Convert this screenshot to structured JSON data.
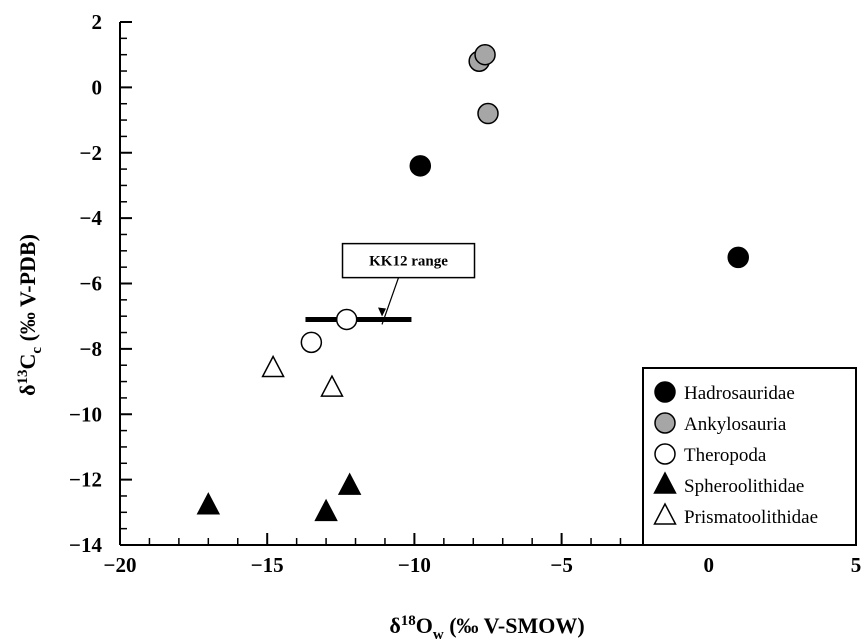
{
  "chart_data": {
    "type": "scatter",
    "xlim": [
      -20,
      5
    ],
    "ylim": [
      -14,
      2
    ],
    "x_ticks": [
      -20,
      -15,
      -10,
      -5,
      0,
      5
    ],
    "y_ticks": [
      -14,
      -12,
      -10,
      -8,
      -6,
      -4,
      -2,
      0,
      2
    ],
    "x_tick_labels": [
      "−20",
      "−15",
      "−10",
      "−5",
      "0",
      "5"
    ],
    "y_tick_labels": [
      "−14",
      "−12",
      "−10",
      "−8",
      "−6",
      "−4",
      "−2",
      "0",
      "2"
    ],
    "xlabel": {
      "base": "δ",
      "sup": "18",
      "main": "O",
      "sub": "w",
      "rest": " (‰ V-SMOW)"
    },
    "ylabel": {
      "base": "δ",
      "sup": "13",
      "main": "C",
      "sub": "c",
      "rest": " (‰ V-PDB)"
    },
    "grid": false,
    "legend_position": "bottom-right",
    "series": [
      {
        "name": "Hadrosauridae",
        "marker": "circle",
        "fill": "#000000",
        "points": [
          [
            -9.8,
            -2.4
          ],
          [
            1.0,
            -5.2
          ]
        ]
      },
      {
        "name": "Ankylosauria",
        "marker": "circle",
        "fill": "#a6a6a6",
        "points": [
          [
            -7.8,
            0.8
          ],
          [
            -7.6,
            1.0
          ],
          [
            -7.5,
            -0.8
          ]
        ]
      },
      {
        "name": "Theropoda",
        "marker": "circle",
        "fill": "#ffffff",
        "points": [
          [
            -13.5,
            -7.8
          ],
          [
            -12.3,
            -7.1
          ]
        ]
      },
      {
        "name": "Spheroolithidae",
        "marker": "triangle",
        "fill": "#000000",
        "points": [
          [
            -17.0,
            -12.8
          ],
          [
            -13.0,
            -13.0
          ],
          [
            -12.2,
            -12.2
          ]
        ]
      },
      {
        "name": "Prismatoolithidae",
        "marker": "triangle",
        "fill": "#ffffff",
        "points": [
          [
            -14.8,
            -8.6
          ],
          [
            -12.8,
            -9.2
          ]
        ]
      }
    ],
    "annotation": {
      "text": "KK12 range",
      "bar": {
        "x_start": -13.7,
        "x_end": -10.1,
        "y": -7.1
      },
      "box_anchor": {
        "x": -10.2,
        "y": -5.3
      },
      "arrow_target": {
        "x": -11.1,
        "y": -7.1
      }
    }
  }
}
